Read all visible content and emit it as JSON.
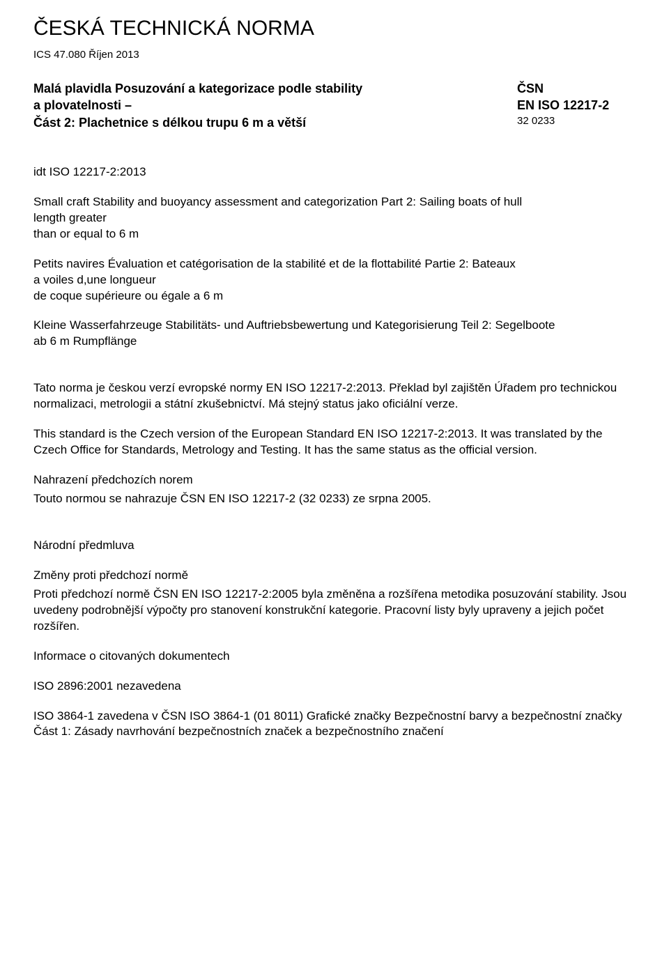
{
  "header": {
    "main_title": "ČESKÁ TECHNICKÁ NORMA",
    "ics_line": "ICS 47.080 Říjen 2013"
  },
  "standard": {
    "title_l1": "Malá plavidla Posuzování a kategorizace podle stability",
    "title_l2": "a plovatelnosti –",
    "title_l3": "Část 2: Plachetnice s délkou trupu 6 m a větší",
    "csn": "ČSN",
    "eniso": "EN ISO 12217-2",
    "catnum": "32 0233"
  },
  "idt": "idt ISO 12217-2:2013",
  "lang": {
    "en_l1": "Small craft Stability and buoyancy assessment and categorization Part 2: Sailing boats of hull",
    "en_l2": "length greater",
    "en_l3": "than or equal to 6 m",
    "fr_l1": "Petits navires Évaluation et catégorisation de la stabilité et de la flottabilité Partie 2: Bateaux",
    "fr_l2": "a voiles d,une longueur",
    "fr_l3": "de coque supérieure ou égale a 6 m",
    "de_l1": "Kleine Wasserfahrzeuge Stabilitäts- und Auftriebsbewertung und Kategorisierung Teil 2: Segelboote",
    "de_l2": "ab 6 m Rumpflänge"
  },
  "body": {
    "p1": "Tato norma je českou verzí evropské normy EN ISO 12217-2:2013. Překlad byl zajištěn Úřadem pro technickou normalizaci, metrologii a státní zkušebnictví. Má stejný status jako oficiální verze.",
    "p2": "This standard is the Czech version of the European Standard EN ISO 12217-2:2013. It was translated by the Czech Office for Standards, Metrology and Testing. It has the same status as the official version.",
    "replace_h": "Nahrazení předchozích norem",
    "replace_p": "Touto normou se nahrazuje ČSN EN ISO 12217-2 (32 0233) ze srpna 2005.",
    "foreword_h": "Národní předmluva",
    "changes_h": "Změny proti předchozí normě",
    "changes_p": "Proti předchozí normě ČSN EN ISO 12217-2:2005 byla změněna a rozšířena metodika posuzování stability. Jsou uvedeny podrobnější výpočty pro stanovení konstrukční kategorie. Pracovní listy byly upraveny a jejich počet rozšířen.",
    "refs_h": "Informace o citovaných dokumentech",
    "ref1": "ISO 2896:2001 nezavedena",
    "ref2": "ISO 3864-1 zavedena v ČSN ISO 3864-1 (01 8011) Grafické značky Bezpečnostní barvy a bezpečnostní značky Část 1: Zásady navrhování bezpečnostních značek a bezpečnostního značení"
  }
}
